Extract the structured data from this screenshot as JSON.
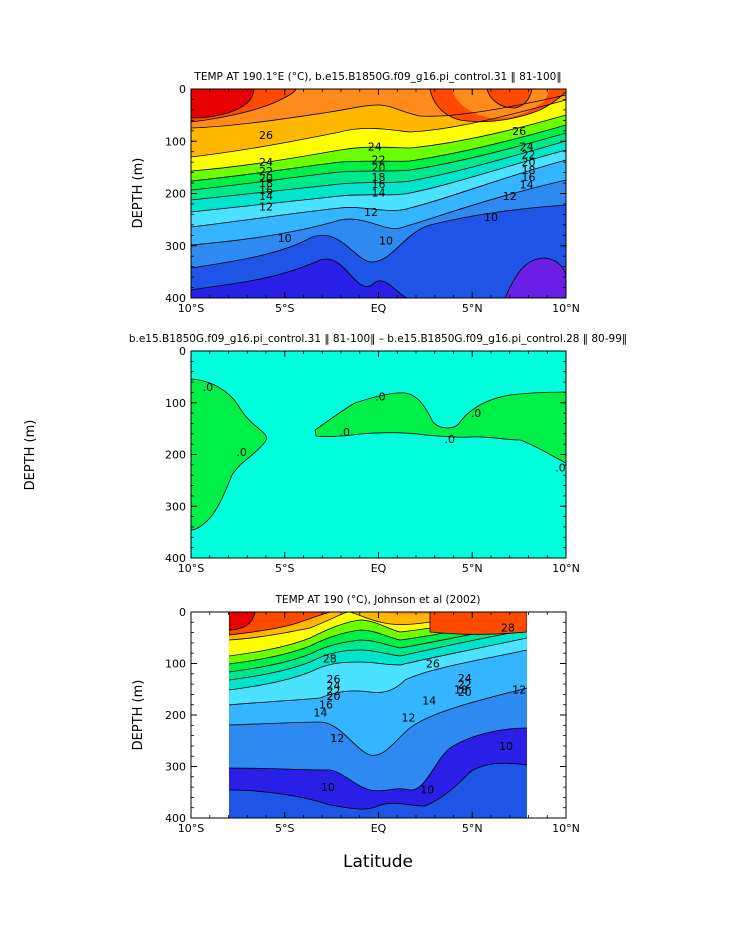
{
  "figure": {
    "xlabel": "Latitude"
  },
  "colors": {
    "cold": "#2a1fe6",
    "blue1": "#1f55e6",
    "blue2": "#2e8af0",
    "blue3": "#35b4ff",
    "cyan1": "#4ae2ff",
    "cyan2": "#00e5cc",
    "green1": "#00e88c",
    "green2": "#00f048",
    "green3": "#6cff00",
    "yellow": "#ffff00",
    "orange1": "#ffb700",
    "orange2": "#ff8c1a",
    "red1": "#ff4a00",
    "red2": "#e60000",
    "purple": "#6a1fe6",
    "diff_fill": "#00ffdc",
    "diff_patch": "#00f048"
  },
  "chart_data": [
    {
      "type": "heatmap",
      "title": "TEMP AT 190.1°E (°C), b.e15.B1850G.f09_g16.pi_control.31 ‖ 81-100‖",
      "ylabel": "DEPTH (m)",
      "xlabel": "",
      "xlim": [
        -10,
        10
      ],
      "ylim": [
        400,
        0
      ],
      "x_ticks": [
        "10°S",
        "5°S",
        "EQ",
        "5°N",
        "10°N"
      ],
      "y_ticks": [
        "0",
        "100",
        "200",
        "300",
        "400"
      ],
      "contour_labels": [
        {
          "text": "26",
          "x": -6,
          "y": 88
        },
        {
          "text": "24",
          "x": -6,
          "y": 140
        },
        {
          "text": "22",
          "x": -6,
          "y": 157
        },
        {
          "text": "20",
          "x": -6,
          "y": 170
        },
        {
          "text": "18",
          "x": -6,
          "y": 180
        },
        {
          "text": "16",
          "x": -6,
          "y": 193
        },
        {
          "text": "14",
          "x": -6,
          "y": 205
        },
        {
          "text": "12",
          "x": -6,
          "y": 225
        },
        {
          "text": "10",
          "x": -5,
          "y": 285
        },
        {
          "text": "24",
          "x": -0.2,
          "y": 110
        },
        {
          "text": "22",
          "x": 0,
          "y": 135
        },
        {
          "text": "20",
          "x": 0,
          "y": 150
        },
        {
          "text": "18",
          "x": 0,
          "y": 168
        },
        {
          "text": "16",
          "x": 0,
          "y": 182
        },
        {
          "text": "14",
          "x": 0,
          "y": 198
        },
        {
          "text": "12",
          "x": -0.4,
          "y": 235
        },
        {
          "text": "10",
          "x": 0.4,
          "y": 290
        },
        {
          "text": "26",
          "x": 7.5,
          "y": 80
        },
        {
          "text": "24",
          "x": 7.9,
          "y": 110
        },
        {
          "text": "22",
          "x": 8,
          "y": 125
        },
        {
          "text": "20",
          "x": 8,
          "y": 140
        },
        {
          "text": "18",
          "x": 8,
          "y": 155
        },
        {
          "text": "16",
          "x": 8,
          "y": 168
        },
        {
          "text": "14",
          "x": 7.9,
          "y": 183
        },
        {
          "text": "12",
          "x": 7,
          "y": 205
        },
        {
          "text": "10",
          "x": 6,
          "y": 245
        }
      ]
    },
    {
      "type": "heatmap",
      "title": "b.e15.B1850G.f09_g16.pi_control.31 ‖ 81-100‖ – b.e15.B1850G.f09_g16.pi_control.28 ‖ 80-99‖",
      "ylabel": "DEPTH (m)",
      "xlabel": "",
      "xlim": [
        -10,
        10
      ],
      "ylim": [
        400,
        0
      ],
      "x_ticks": [
        "10°S",
        "5°S",
        "EQ",
        "5°N",
        "10°N"
      ],
      "y_ticks": [
        "0",
        "100",
        "200",
        "300",
        "400"
      ],
      "contour_labels": [
        {
          "text": ".0",
          "x": -9.1,
          "y": 70
        },
        {
          "text": ".0",
          "x": -7.3,
          "y": 195
        },
        {
          "text": ".0",
          "x": 0.1,
          "y": 88
        },
        {
          "text": ".0",
          "x": -1.8,
          "y": 157
        },
        {
          "text": ".0",
          "x": 3.8,
          "y": 170
        },
        {
          "text": ".0",
          "x": 5.2,
          "y": 120
        },
        {
          "text": ".0",
          "x": 9.7,
          "y": 225
        }
      ]
    },
    {
      "type": "heatmap",
      "title": "TEMP AT 190 (°C), Johnson et al (2002)",
      "ylabel": "DEPTH (m)",
      "xlabel": "Latitude",
      "xlim": [
        -10,
        10
      ],
      "ylim": [
        400,
        0
      ],
      "data_xlim": [
        -8,
        8
      ],
      "x_ticks": [
        "10°S",
        "5°S",
        "EQ",
        "5°N",
        "10°N"
      ],
      "y_ticks": [
        "0",
        "100",
        "200",
        "300",
        "400"
      ],
      "contour_labels": [
        {
          "text": "28",
          "x": -2.6,
          "y": 90
        },
        {
          "text": "26",
          "x": -2.4,
          "y": 130
        },
        {
          "text": "24",
          "x": -2.4,
          "y": 143
        },
        {
          "text": "22",
          "x": -2.4,
          "y": 153
        },
        {
          "text": "20",
          "x": -2.4,
          "y": 163
        },
        {
          "text": "16",
          "x": -2.8,
          "y": 180
        },
        {
          "text": "14",
          "x": -3.1,
          "y": 195
        },
        {
          "text": "12",
          "x": -2.2,
          "y": 245
        },
        {
          "text": "10",
          "x": -2.7,
          "y": 340
        },
        {
          "text": "26",
          "x": 2.9,
          "y": 100
        },
        {
          "text": "24",
          "x": 4.6,
          "y": 128
        },
        {
          "text": "22",
          "x": 4.6,
          "y": 140
        },
        {
          "text": "18",
          "x": 4.4,
          "y": 150
        },
        {
          "text": "20",
          "x": 4.6,
          "y": 155
        },
        {
          "text": "14",
          "x": 2.7,
          "y": 172
        },
        {
          "text": "12",
          "x": 1.6,
          "y": 205
        },
        {
          "text": "28",
          "x": 6.9,
          "y": 30
        },
        {
          "text": "12",
          "x": 7.5,
          "y": 150
        },
        {
          "text": "10",
          "x": 6.8,
          "y": 260
        },
        {
          "text": "10",
          "x": 2.6,
          "y": 345
        }
      ]
    }
  ]
}
